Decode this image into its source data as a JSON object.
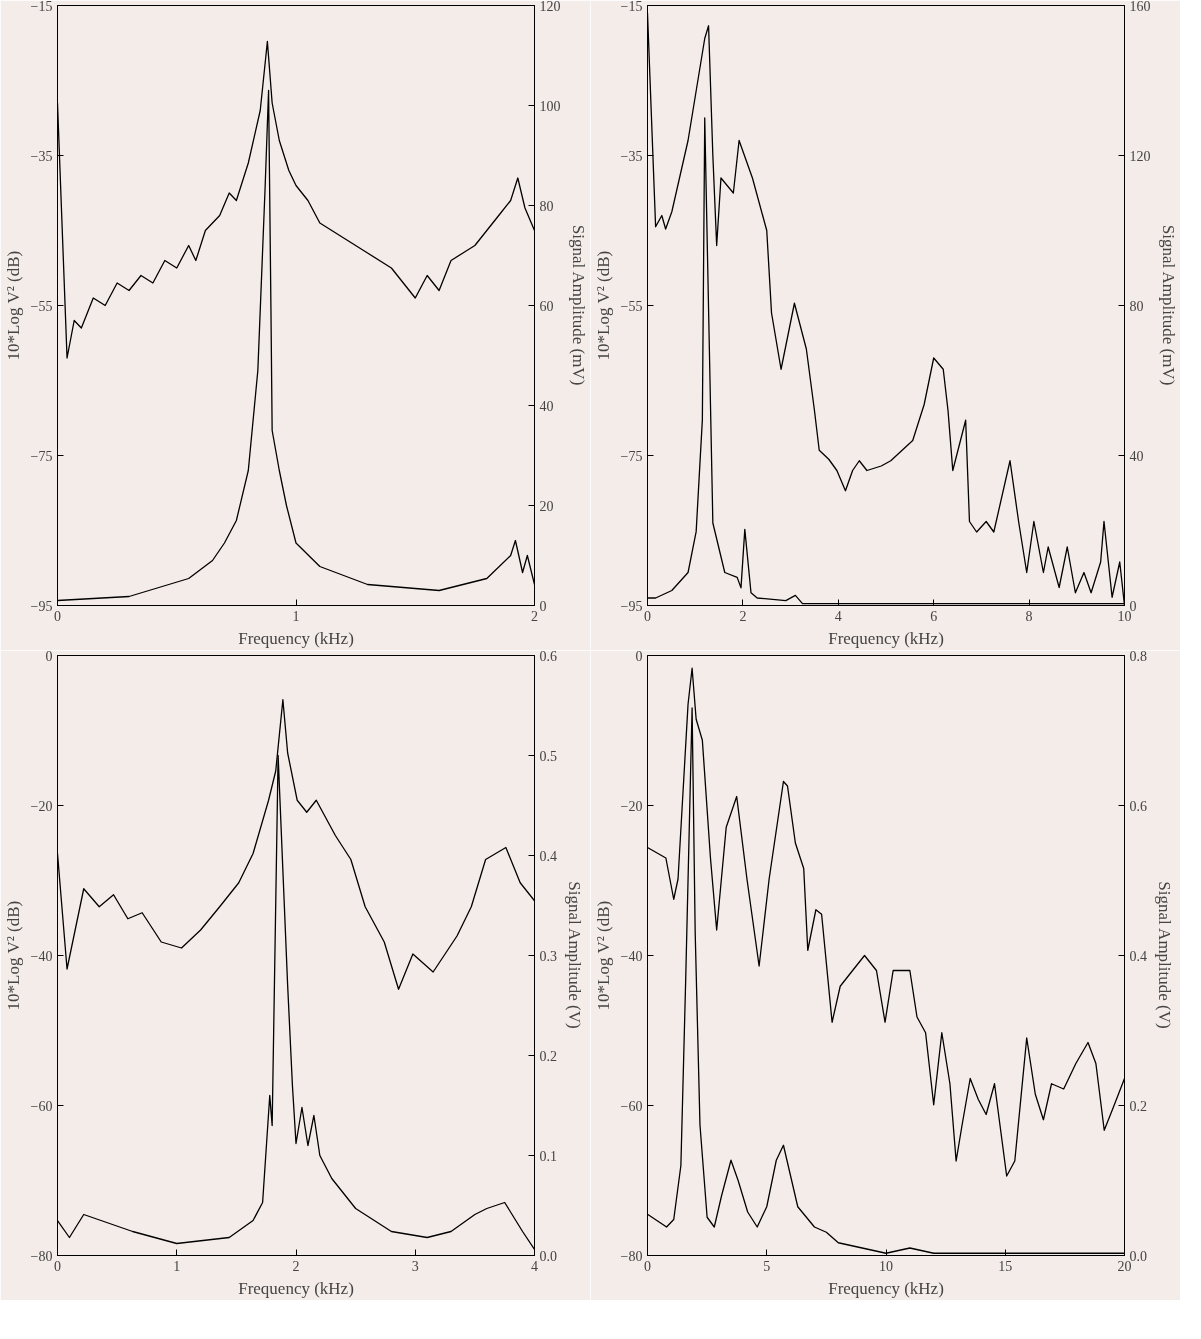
{
  "chart_data": [
    {
      "type": "line",
      "xlabel": "Frequency (kHz)",
      "ylabel": "10*Log V² (dB)",
      "y2label": "Signal Amplitude (mV)",
      "xlim": [
        0,
        2
      ],
      "xticks": [
        0,
        1,
        2
      ],
      "ylim": [
        -95,
        -15
      ],
      "yticks": [
        -15,
        -35,
        -55,
        -75,
        -95
      ],
      "y2lim": [
        0,
        120
      ],
      "y2ticks": [
        0,
        20,
        40,
        60,
        80,
        100,
        120
      ],
      "grid": false,
      "series": [
        {
          "color": "#000000",
          "x": [
            0,
            0.04,
            0.07,
            0.1,
            0.15,
            0.2,
            0.25,
            0.3,
            0.35,
            0.4,
            0.45,
            0.5,
            0.55,
            0.58,
            0.62,
            0.68,
            0.72,
            0.75,
            0.8,
            0.85,
            0.88,
            0.9,
            0.93,
            0.97,
            1.0,
            1.05,
            1.1,
            1.15,
            1.2,
            1.3,
            1.4,
            1.45,
            1.5,
            1.55,
            1.6,
            1.65,
            1.7,
            1.75,
            1.8,
            1.85,
            1.9,
            1.93,
            1.96,
            2.0
          ],
          "values": [
            -28,
            -62,
            -57,
            -58,
            -54,
            -55,
            -52,
            -53,
            -51,
            -52,
            -49,
            -50,
            -47,
            -49,
            -45,
            -43,
            -40,
            -41,
            -36,
            -29,
            -19.8,
            -28,
            -33,
            -37,
            -39,
            -41,
            -44,
            -45,
            -46,
            -48,
            -50,
            -52,
            -54,
            -51,
            -53,
            -49,
            -48,
            -47,
            -45,
            -43,
            -41,
            -38,
            -42,
            -45
          ]
        },
        {
          "color": "#000000",
          "axis": "y2",
          "x": [
            0,
            0.3,
            0.55,
            0.65,
            0.7,
            0.75,
            0.8,
            0.84,
            0.87,
            0.885,
            0.895,
            0.9,
            0.93,
            0.96,
            1.0,
            1.1,
            1.3,
            1.6,
            1.8,
            1.9,
            1.92,
            1.95,
            1.97,
            2.0
          ],
          "values": [
            1,
            1.8,
            5.4,
            9,
            12.5,
            17,
            27,
            47,
            83,
            103,
            59,
            35,
            27,
            20,
            12.5,
            7.8,
            4.2,
            3,
            5.4,
            10,
            13,
            6.6,
            10,
            4.2
          ]
        }
      ]
    },
    {
      "type": "line",
      "xlabel": "Frequency (kHz)",
      "ylabel": "10*Log V² (dB)",
      "y2label": "Signal Amplitude (mV)",
      "xlim": [
        0,
        10
      ],
      "xticks": [
        0,
        2,
        4,
        6,
        8,
        10
      ],
      "ylim": [
        -95,
        -15
      ],
      "yticks": [
        -15,
        -35,
        -55,
        -75,
        -95
      ],
      "y2lim": [
        0,
        160
      ],
      "y2ticks": [
        0,
        40,
        80,
        120,
        160
      ],
      "grid": false,
      "series": [
        {
          "color": "#000000",
          "x": [
            0,
            0.17,
            0.3,
            0.38,
            0.51,
            0.85,
            1.2,
            1.28,
            1.37,
            1.45,
            1.54,
            1.8,
            1.92,
            2.2,
            2.5,
            2.6,
            2.8,
            3.08,
            3.33,
            3.5,
            3.6,
            3.8,
            3.97,
            4.15,
            4.3,
            4.44,
            4.6,
            4.9,
            5.1,
            5.56,
            5.8,
            6.0,
            6.2,
            6.3,
            6.4,
            6.67,
            6.75,
            6.9,
            7.1,
            7.26,
            7.6,
            7.78,
            7.95,
            8.1,
            8.3,
            8.4,
            8.63,
            8.8,
            8.97,
            9.15,
            9.3,
            9.5,
            9.57,
            9.74,
            9.9,
            10
          ],
          "values": [
            -16,
            -44.5,
            -43,
            -44.8,
            -42.5,
            -33,
            -19.4,
            -17.7,
            -35,
            -47,
            -38,
            -40,
            -33,
            -38,
            -45,
            -56,
            -63.5,
            -54.7,
            -60.8,
            -69,
            -74.3,
            -75.5,
            -77,
            -79.7,
            -77,
            -75.7,
            -77,
            -76.4,
            -75.7,
            -73,
            -68.2,
            -62,
            -63.5,
            -69,
            -77,
            -70.3,
            -83.8,
            -85.2,
            -83.8,
            -85.2,
            -75.7,
            -83.8,
            -90.6,
            -83.8,
            -90.6,
            -87.2,
            -92.6,
            -87.2,
            -93.3,
            -90.6,
            -93.3,
            -89.2,
            -83.8,
            -93.9,
            -89.2,
            -95
          ]
        },
        {
          "color": "#000000",
          "axis": "y2",
          "x": [
            0,
            0.17,
            0.51,
            0.85,
            1.02,
            1.15,
            1.2,
            1.37,
            1.62,
            1.88,
            1.96,
            2.04,
            2.17,
            2.3,
            2.9,
            3.1,
            3.25,
            4,
            6,
            8,
            10
          ],
          "values": [
            2,
            2,
            4,
            8.8,
            19.7,
            49.5,
            130,
            22,
            8.8,
            7.5,
            4.7,
            20.3,
            3.4,
            2,
            1.3,
            2.7,
            0.5,
            0.5,
            0.5,
            0.5,
            0.5
          ]
        }
      ]
    },
    {
      "type": "line",
      "xlabel": "Frequency (kHz)",
      "ylabel": "10*Log V² (dB)",
      "y2label": "Signal Amplitude (V)",
      "xlim": [
        0,
        4
      ],
      "xticks": [
        0,
        1,
        2,
        3,
        4
      ],
      "ylim": [
        -80,
        0
      ],
      "yticks": [
        0,
        -20,
        -40,
        -60,
        -80
      ],
      "y2lim": [
        0,
        0.6
      ],
      "y2ticks": [
        {
          "value": 0,
          "label": "0.0"
        },
        0.1,
        0.2,
        0.3,
        0.4,
        0.5,
        0.6
      ],
      "grid": false,
      "series": [
        {
          "color": "#000000",
          "x": [
            0,
            0.08,
            0.22,
            0.35,
            0.47,
            0.59,
            0.71,
            0.87,
            1.04,
            1.2,
            1.36,
            1.52,
            1.64,
            1.77,
            1.83,
            1.89,
            1.93,
            2.01,
            2.09,
            2.17,
            2.33,
            2.46,
            2.58,
            2.74,
            2.86,
            2.98,
            3.15,
            3.35,
            3.47,
            3.59,
            3.76,
            3.88,
            4.0
          ],
          "values": [
            -26.4,
            -41.8,
            -31.1,
            -33.5,
            -31.9,
            -35.1,
            -34.3,
            -38.2,
            -39,
            -36.6,
            -33.5,
            -30.3,
            -26.4,
            -19.3,
            -15.4,
            -5.9,
            -13,
            -19.3,
            -20.9,
            -19.3,
            -24,
            -27.2,
            -33.5,
            -38.2,
            -44.5,
            -39.8,
            -42.2,
            -37.4,
            -33.5,
            -27.2,
            -25.6,
            -30.3,
            -32.7
          ]
        },
        {
          "color": "#000000",
          "axis": "y2",
          "x": [
            0,
            0.1,
            0.22,
            0.63,
            1.0,
            1.44,
            1.64,
            1.72,
            1.78,
            1.8,
            1.85,
            1.93,
            1.97,
            2.0,
            2.05,
            2.1,
            2.15,
            2.2,
            2.3,
            2.5,
            2.8,
            3.1,
            3.3,
            3.5,
            3.6,
            3.75,
            3.9,
            4.0
          ],
          "values": [
            0.035,
            0.018,
            0.041,
            0.024,
            0.012,
            0.018,
            0.035,
            0.053,
            0.16,
            0.13,
            0.5,
            0.27,
            0.17,
            0.112,
            0.148,
            0.11,
            0.14,
            0.1,
            0.077,
            0.047,
            0.024,
            0.018,
            0.024,
            0.041,
            0.047,
            0.053,
            0.024,
            0.006
          ]
        }
      ]
    },
    {
      "type": "line",
      "xlabel": "Frequency (kHz)",
      "ylabel": "10*Log V² (dB)",
      "y2label": "Signal Amplitude (V)",
      "xlim": [
        0,
        20
      ],
      "xticks": [
        0,
        5,
        10,
        15,
        20
      ],
      "ylim": [
        -80,
        0
      ],
      "yticks": [
        0,
        -20,
        -40,
        -60,
        -80
      ],
      "y2lim": [
        0,
        0.8
      ],
      "y2ticks": [
        {
          "value": 0,
          "label": "0.0"
        },
        0.2,
        0.4,
        0.6,
        0.8
      ],
      "grid": false,
      "series": [
        {
          "color": "#000000",
          "x": [
            0,
            0.77,
            1.1,
            1.28,
            1.7,
            1.87,
            2.04,
            2.3,
            2.64,
            2.9,
            3.3,
            3.74,
            4.17,
            4.68,
            5.1,
            5.7,
            5.87,
            6.2,
            6.55,
            6.72,
            7.06,
            7.3,
            7.74,
            8.08,
            8.6,
            9.1,
            9.6,
            9.96,
            10.3,
            11,
            11.3,
            11.66,
            12,
            12.34,
            12.68,
            12.94,
            13.19,
            13.53,
            13.87,
            14.2,
            14.55,
            15.06,
            15.4,
            15.9,
            16.26,
            16.6,
            16.94,
            17.45,
            17.96,
            18.47,
            18.8,
            19.15,
            19.5,
            19.83,
            20
          ],
          "values": [
            -25.6,
            -27,
            -32.5,
            -29.8,
            -6.5,
            -1.7,
            -8.5,
            -11.3,
            -27,
            -36.6,
            -22.9,
            -18.8,
            -29.8,
            -41.4,
            -29.8,
            -16.8,
            -17.4,
            -25,
            -28.4,
            -39.3,
            -33.9,
            -34.5,
            -48.9,
            -44.1,
            -42,
            -40,
            -42,
            -48.9,
            -42,
            -42,
            -48.2,
            -50.3,
            -59.9,
            -50.3,
            -57.1,
            -67.4,
            -62.6,
            -56.4,
            -59.2,
            -61.2,
            -57.1,
            -69.4,
            -67.4,
            -51,
            -58.5,
            -61.9,
            -57.1,
            -57.8,
            -54.4,
            -51.6,
            -54.4,
            -63.3,
            -60.5,
            -57.8,
            -56.4
          ]
        },
        {
          "color": "#000000",
          "axis": "y2",
          "x": [
            0,
            0.8,
            1.1,
            1.4,
            1.6,
            1.87,
            2.0,
            2.2,
            2.5,
            2.8,
            3.1,
            3.5,
            3.8,
            4.2,
            4.6,
            5.0,
            5.4,
            5.7,
            6.0,
            6.3,
            7,
            7.5,
            8,
            9,
            10,
            11,
            12,
            14,
            16,
            18,
            20
          ],
          "values": [
            0.055,
            0.038,
            0.048,
            0.12,
            0.366,
            0.73,
            0.43,
            0.174,
            0.051,
            0.038,
            0.079,
            0.127,
            0.1,
            0.058,
            0.038,
            0.065,
            0.127,
            0.147,
            0.106,
            0.065,
            0.038,
            0.031,
            0.017,
            0.01,
            0.003,
            0.01,
            0.003,
            0.003,
            0.003,
            0.003,
            0.003
          ]
        }
      ]
    }
  ]
}
